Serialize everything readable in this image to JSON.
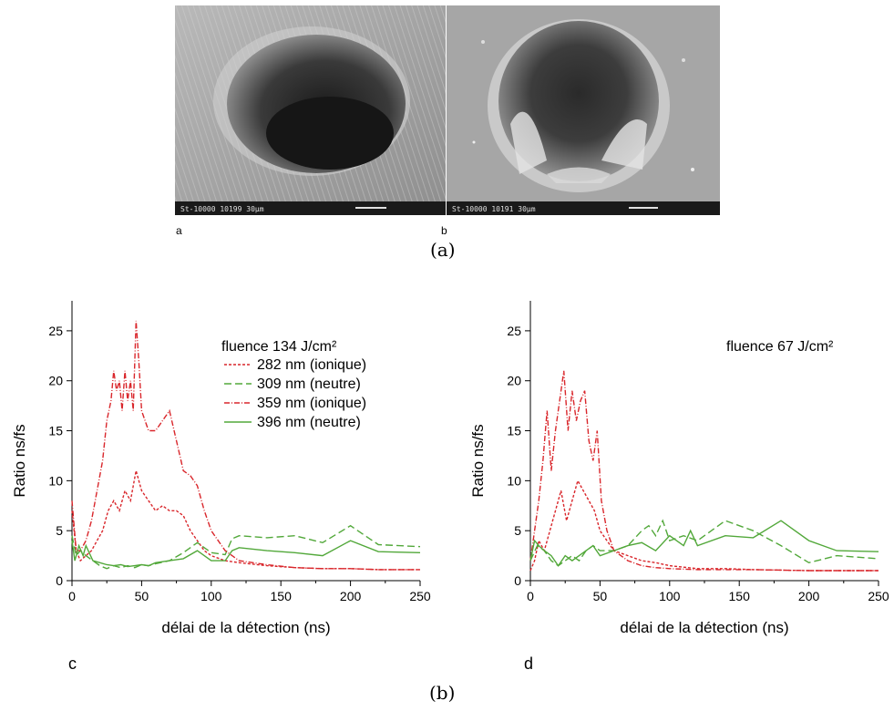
{
  "figure": {
    "sublabel_a": "a",
    "sublabel_b": "b",
    "caption_a": "(a)",
    "caption_b": "(b)",
    "panel_c": "c",
    "panel_d": "d",
    "sem_bar_a": "St-10000      10199      30μm",
    "sem_bar_b": "St-10000      10191      30μm"
  },
  "colors": {
    "red": "#d9262b",
    "green": "#52a83a"
  },
  "chart_data": [
    {
      "type": "line",
      "annotation": "fluence 134 J/cm²",
      "xlabel": "délai de la détection (ns)",
      "ylabel": "Ratio ns/fs",
      "xlim": [
        0,
        250
      ],
      "ylim": [
        0,
        28
      ],
      "xticks": [
        0,
        50,
        100,
        150,
        200,
        250
      ],
      "yticks": [
        0,
        5,
        10,
        15,
        20,
        25
      ],
      "legend_position": "top-center",
      "series": [
        {
          "name": "282 nm (ionique)",
          "color": "#d9262b",
          "dash": "3,2",
          "x": [
            0,
            3,
            6,
            10,
            14,
            18,
            22,
            26,
            30,
            34,
            38,
            42,
            46,
            50,
            55,
            60,
            65,
            70,
            75,
            80,
            85,
            90,
            95,
            100,
            110,
            120,
            140,
            160,
            180,
            200,
            220,
            250
          ],
          "y": [
            7,
            3,
            2,
            2.5,
            3,
            4,
            5,
            7,
            8,
            7,
            9,
            8,
            11,
            9,
            8,
            7,
            7.5,
            7,
            7,
            6.5,
            5,
            4,
            3,
            2.5,
            2,
            1.8,
            1.5,
            1.3,
            1.2,
            1.2,
            1.1,
            1.1
          ]
        },
        {
          "name": "309 nm (neutre)",
          "color": "#52a83a",
          "dash": "8,4",
          "x": [
            0,
            3,
            6,
            10,
            15,
            20,
            25,
            30,
            35,
            40,
            45,
            50,
            55,
            60,
            70,
            80,
            90,
            100,
            110,
            115,
            120,
            140,
            160,
            180,
            200,
            220,
            250
          ],
          "y": [
            4.5,
            2.5,
            3,
            2.5,
            2,
            1.5,
            1.2,
            1.5,
            1.3,
            1.5,
            1.3,
            1.6,
            1.5,
            1.7,
            2,
            2.8,
            3.8,
            2.8,
            2.6,
            4.2,
            4.5,
            4.3,
            4.5,
            3.8,
            5.5,
            3.6,
            3.4
          ]
        },
        {
          "name": "359 nm (ionique)",
          "color": "#d9262b",
          "dash": "6,2,1,2",
          "x": [
            0,
            3,
            6,
            10,
            14,
            18,
            22,
            25,
            28,
            30,
            32,
            34,
            36,
            38,
            40,
            42,
            44,
            46,
            48,
            50,
            55,
            60,
            65,
            70,
            75,
            80,
            85,
            90,
            95,
            100,
            110,
            120,
            140,
            160,
            180,
            200,
            220,
            250
          ],
          "y": [
            8,
            3,
            3,
            4,
            6,
            9,
            12,
            16,
            18,
            21,
            19,
            20,
            17,
            21,
            18,
            20,
            17,
            26,
            22,
            17,
            15,
            15,
            16,
            17,
            14,
            11,
            10.5,
            9.5,
            7,
            5,
            3,
            2,
            1.6,
            1.3,
            1.2,
            1.2,
            1.1,
            1.1
          ]
        },
        {
          "name": "396 nm (neutre)",
          "color": "#52a83a",
          "dash": "",
          "x": [
            0,
            2,
            5,
            8,
            10,
            15,
            20,
            25,
            30,
            35,
            40,
            45,
            50,
            55,
            60,
            70,
            80,
            90,
            100,
            110,
            115,
            120,
            140,
            160,
            180,
            200,
            220,
            250
          ],
          "y": [
            4,
            2,
            3.5,
            2.5,
            3.5,
            2,
            1.8,
            1.6,
            1.5,
            1.6,
            1.4,
            1.5,
            1.6,
            1.5,
            1.8,
            2,
            2.2,
            3,
            2,
            2,
            3,
            3.3,
            3,
            2.8,
            2.5,
            4,
            2.9,
            2.8
          ]
        }
      ]
    },
    {
      "type": "line",
      "annotation": "fluence 67 J/cm²",
      "xlabel": "délai de la détection (ns)",
      "ylabel": "Ratio ns/fs",
      "xlim": [
        0,
        250
      ],
      "ylim": [
        0,
        28
      ],
      "xticks": [
        0,
        50,
        100,
        150,
        200,
        250
      ],
      "yticks": [
        0,
        5,
        10,
        15,
        20,
        25
      ],
      "series": [
        {
          "name": "282 nm (ionique)",
          "color": "#d9262b",
          "dash": "3,2",
          "x": [
            0,
            3,
            6,
            10,
            14,
            18,
            22,
            26,
            30,
            34,
            38,
            42,
            46,
            50,
            55,
            60,
            70,
            80,
            90,
            100,
            120,
            140,
            160,
            200,
            250
          ],
          "y": [
            1,
            2,
            4,
            3,
            5,
            7,
            9,
            6,
            8,
            10,
            9,
            8,
            7,
            5,
            4,
            3,
            2.5,
            2,
            1.8,
            1.5,
            1.2,
            1.2,
            1.1,
            1,
            1
          ]
        },
        {
          "name": "309 nm (neutre)",
          "color": "#52a83a",
          "dash": "8,4",
          "x": [
            0,
            5,
            10,
            15,
            20,
            25,
            30,
            35,
            40,
            45,
            50,
            55,
            60,
            70,
            80,
            85,
            90,
            95,
            100,
            110,
            120,
            130,
            140,
            160,
            180,
            200,
            220,
            250
          ],
          "y": [
            2,
            3.5,
            3,
            2,
            1.5,
            2,
            2.5,
            2,
            3,
            3.5,
            3,
            3,
            3,
            3.5,
            5,
            5.5,
            4.5,
            6,
            4,
            4.5,
            4,
            5,
            6,
            5,
            3.5,
            1.8,
            2.5,
            2.2
          ]
        },
        {
          "name": "359 nm (ionique)",
          "color": "#d9262b",
          "dash": "6,2,1,2",
          "x": [
            0,
            3,
            6,
            9,
            12,
            15,
            18,
            21,
            24,
            27,
            30,
            33,
            36,
            39,
            42,
            45,
            48,
            51,
            55,
            60,
            70,
            80,
            90,
            100,
            120,
            140,
            160,
            200,
            250
          ],
          "y": [
            2,
            5,
            8,
            12,
            17,
            11,
            15,
            18,
            21,
            15,
            19,
            16,
            18,
            19,
            14,
            12,
            15,
            8,
            5,
            3,
            2,
            1.5,
            1.3,
            1.2,
            1.1,
            1.1,
            1.1,
            1,
            1
          ]
        },
        {
          "name": "396 nm (neutre)",
          "color": "#52a83a",
          "dash": "",
          "x": [
            0,
            3,
            6,
            10,
            15,
            20,
            25,
            30,
            35,
            40,
            45,
            50,
            60,
            70,
            80,
            90,
            100,
            110,
            115,
            120,
            140,
            160,
            180,
            200,
            220,
            250
          ],
          "y": [
            2,
            4,
            3.5,
            3,
            2.5,
            1.5,
            2.5,
            2,
            2.5,
            3,
            3.5,
            2.5,
            3,
            3.5,
            3.8,
            3,
            4.5,
            3.5,
            5,
            3.5,
            4.5,
            4.3,
            6,
            4,
            3,
            2.9
          ]
        }
      ]
    }
  ]
}
